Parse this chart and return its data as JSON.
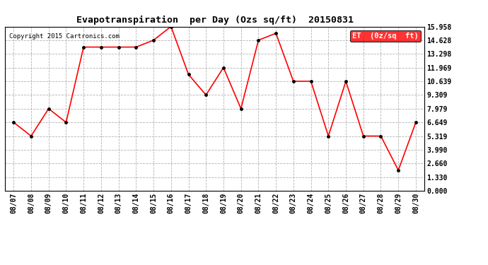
{
  "title": "Evapotranspiration  per Day (Ozs sq/ft)  20150831",
  "copyright": "Copyright 2015 Cartronics.com",
  "legend_label": "ET  (0z/sq  ft)",
  "dates": [
    "08/07",
    "08/08",
    "08/09",
    "08/10",
    "08/11",
    "08/12",
    "08/13",
    "08/14",
    "08/15",
    "08/16",
    "08/17",
    "08/18",
    "08/19",
    "08/20",
    "08/21",
    "08/22",
    "08/23",
    "08/24",
    "08/25",
    "08/26",
    "08/27",
    "08/28",
    "08/29",
    "08/30"
  ],
  "values": [
    6.649,
    5.319,
    7.979,
    6.649,
    13.96,
    13.96,
    13.96,
    13.96,
    14.628,
    15.958,
    11.3,
    9.309,
    11.969,
    7.979,
    14.628,
    15.3,
    10.639,
    10.639,
    5.319,
    10.639,
    5.319,
    5.319,
    1.995,
    6.649
  ],
  "yticks": [
    0.0,
    1.33,
    2.66,
    3.99,
    5.319,
    6.649,
    7.979,
    9.309,
    10.639,
    11.969,
    13.298,
    14.628,
    15.958
  ],
  "ylim": [
    0.0,
    15.958
  ],
  "line_color": "red",
  "marker_color": "black",
  "bg_color": "white",
  "grid_color": "#aaaaaa",
  "title_fontsize": 9.5,
  "tick_fontsize": 7,
  "copyright_fontsize": 6.5,
  "legend_fontsize": 7.5,
  "legend_bg": "red",
  "legend_text_color": "white"
}
